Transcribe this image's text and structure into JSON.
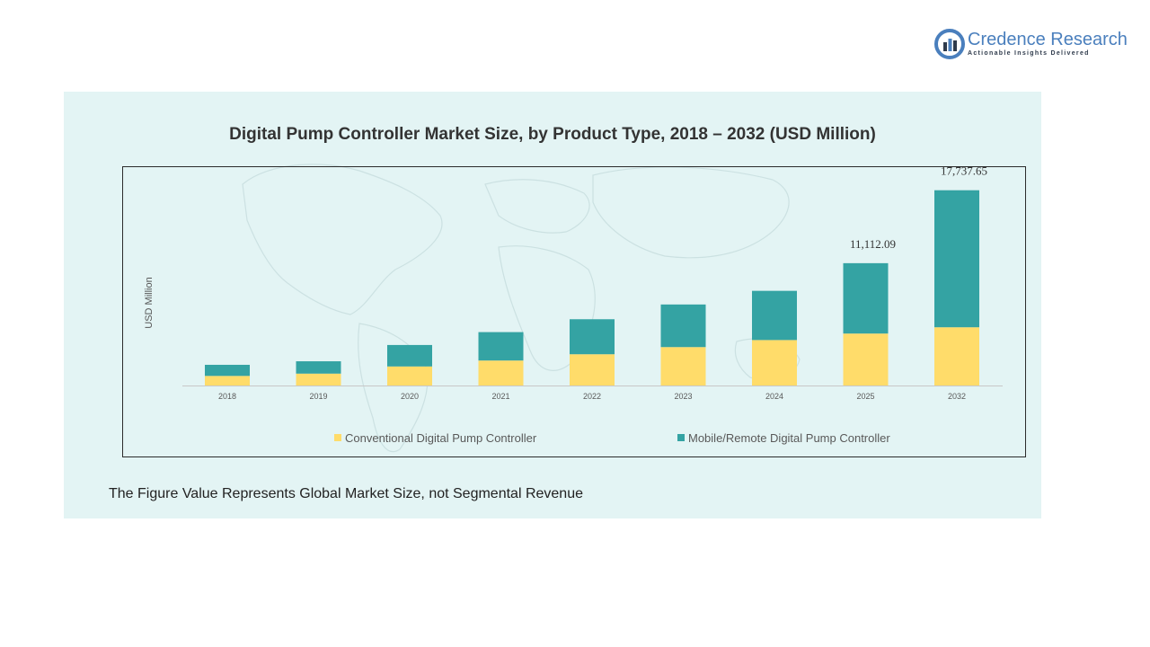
{
  "brand": {
    "name": "Credence Research",
    "tagline": "Actionable Insights Delivered",
    "logo_icon": "credence-logo-icon",
    "color": "#4a7fbd"
  },
  "chart_data": {
    "type": "bar",
    "stacked": true,
    "title": "Digital Pump Controller Market Size, by Product Type, 2018 – 2032 (USD Million)",
    "xlabel": "",
    "ylabel": "USD Million",
    "categories": [
      "2018",
      "2019",
      "2020",
      "2021",
      "2022",
      "2023",
      "2024",
      "2025",
      "2032"
    ],
    "series": [
      {
        "name": "Conventional Digital Pump Controller",
        "color": "#ffdc6a",
        "values": [
          870,
          1080,
          1730,
          2270,
          2840,
          3490,
          4130,
          4720,
          5290
        ]
      },
      {
        "name": "Mobile/Remote Digital Pump Controller",
        "color": "#34a3a3",
        "values": [
          1010,
          1120,
          1950,
          2580,
          3180,
          3870,
          4470,
          6392.09,
          12447.65
        ]
      }
    ],
    "data_labels": [
      {
        "category": "2025",
        "text": "11,112.09"
      },
      {
        "category": "2032",
        "text": "17,737.65"
      }
    ],
    "ylim": [
      0,
      20000
    ],
    "grid": false,
    "legend_position": "bottom"
  },
  "footnote": "The Figure Value Represents Global Market Size, not Segmental Revenue"
}
